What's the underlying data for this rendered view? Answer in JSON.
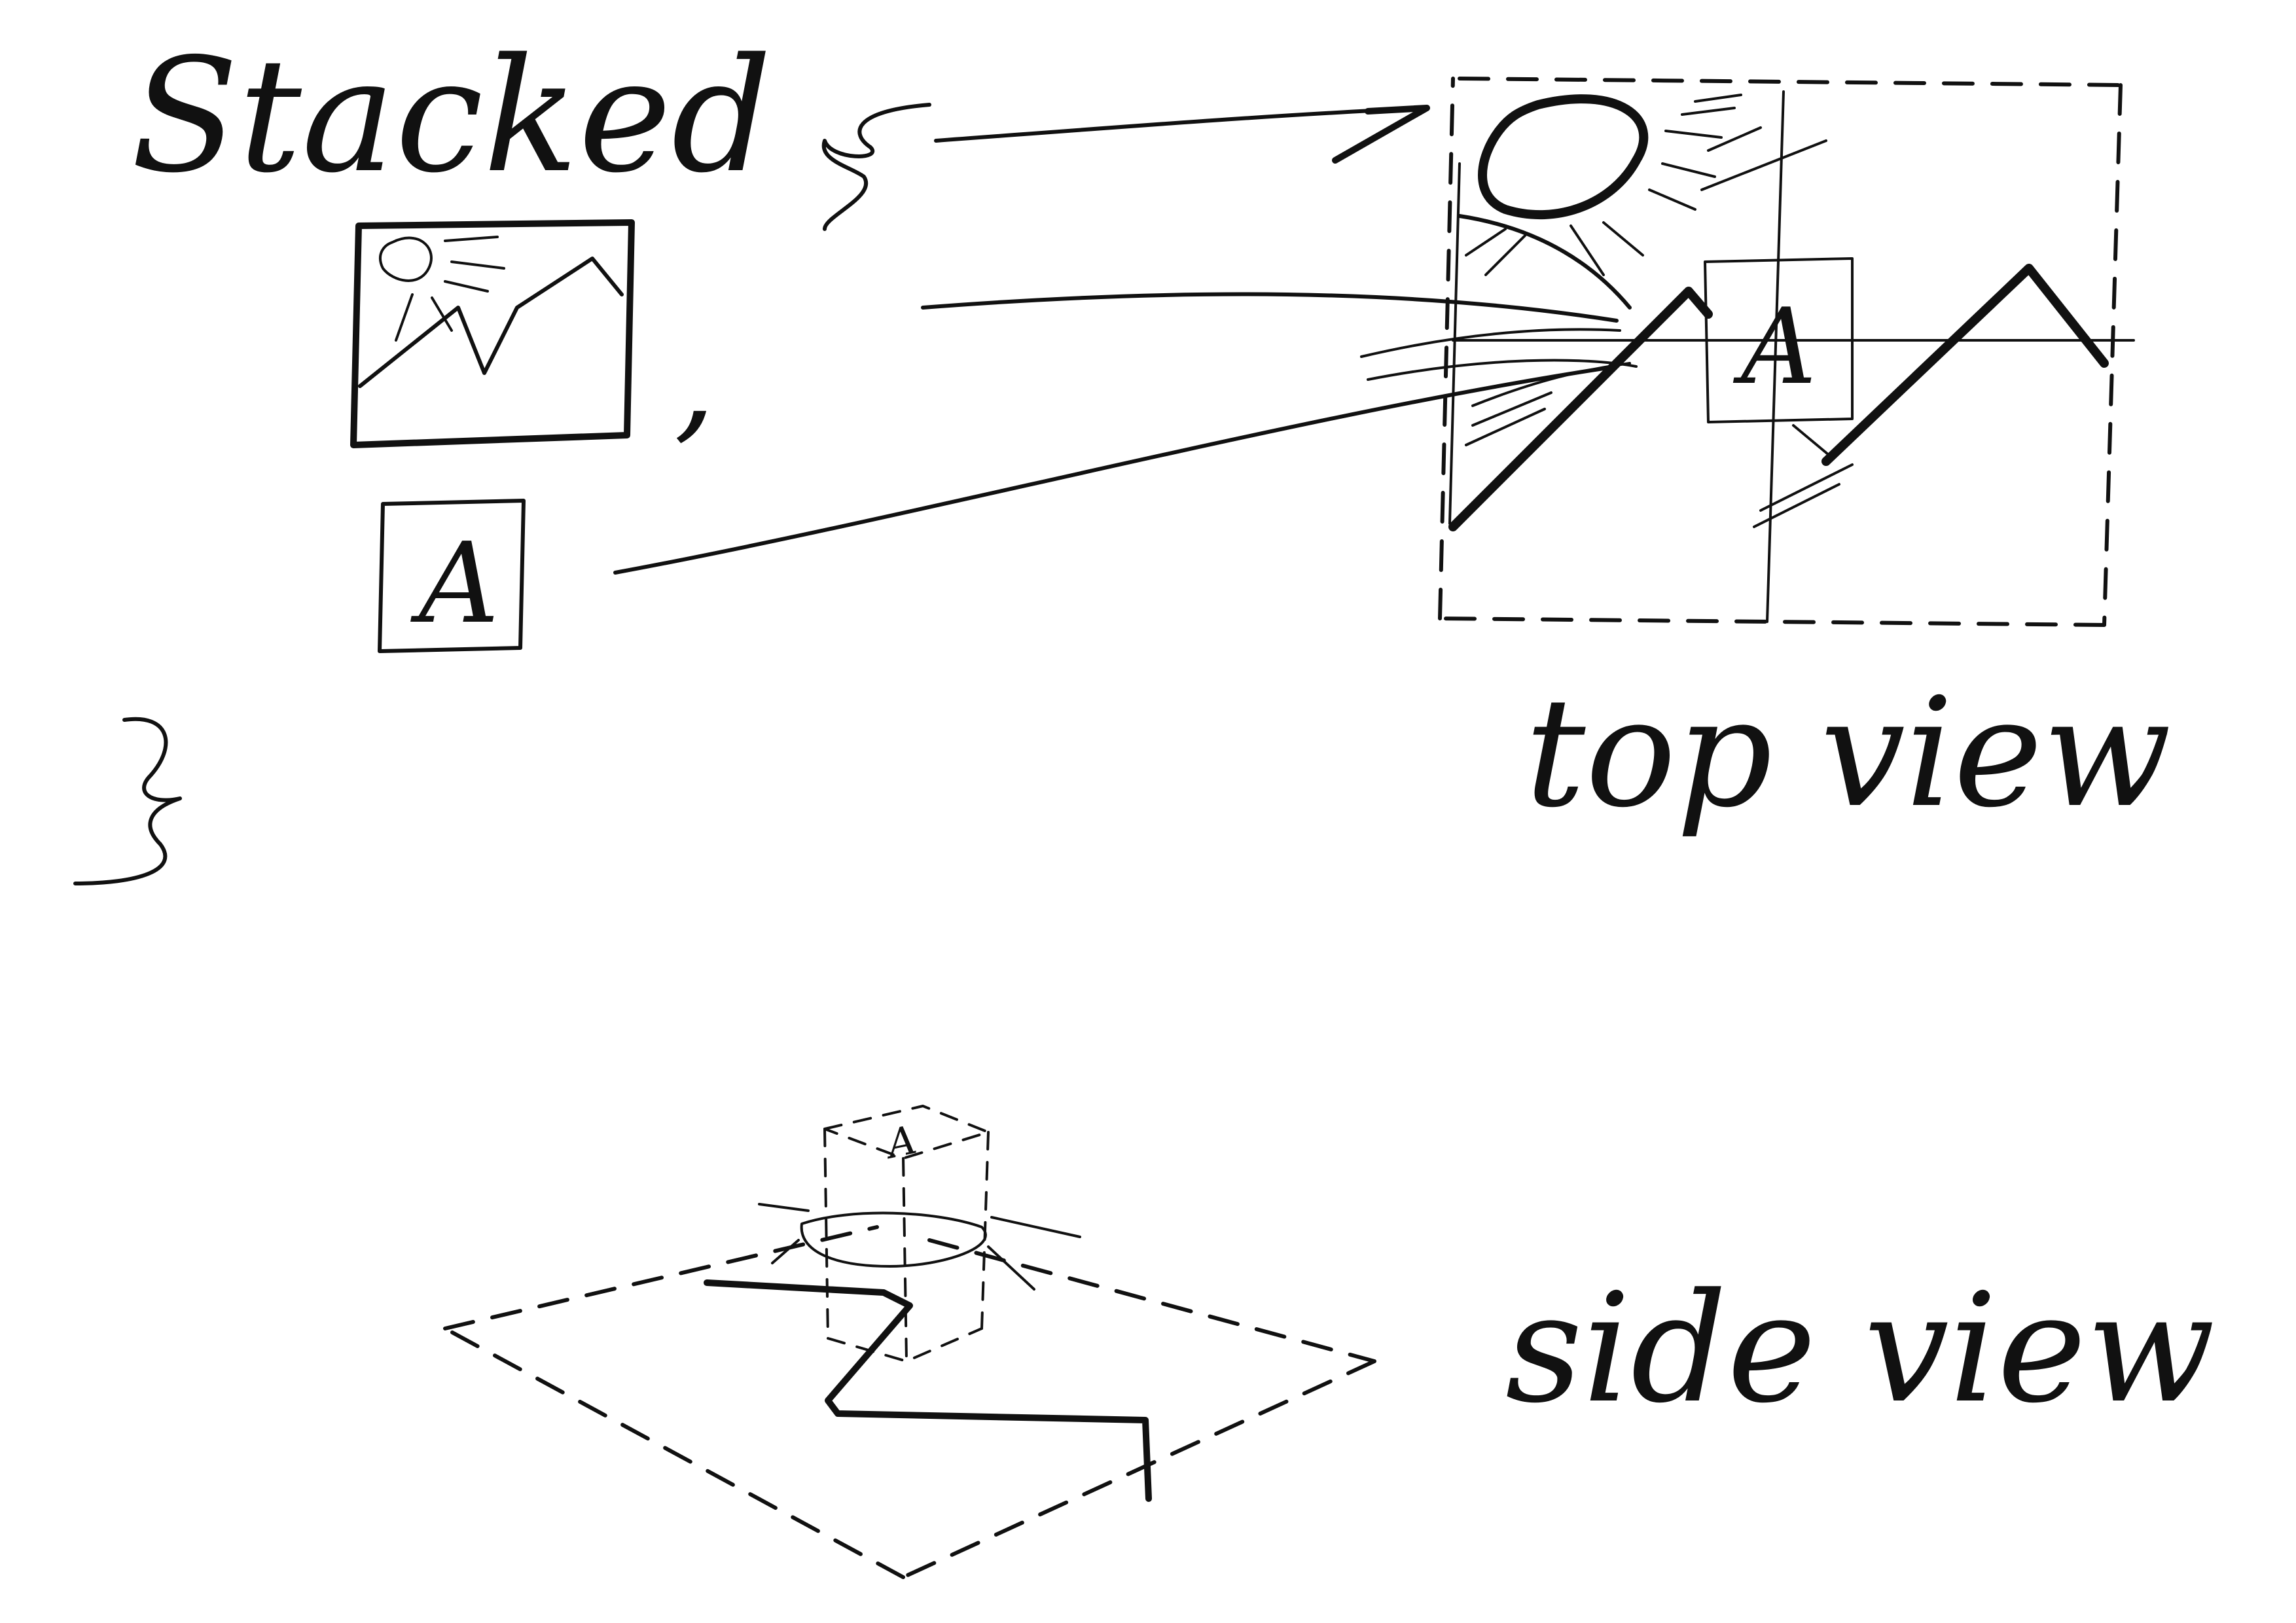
{
  "sketch": {
    "stacked_label": "Stacked",
    "separator": ",",
    "tile_letter": "A",
    "top_view_label": "top view",
    "side_view_label": "side view",
    "ink_color": "#111111",
    "paper_color": "#ffffff"
  }
}
